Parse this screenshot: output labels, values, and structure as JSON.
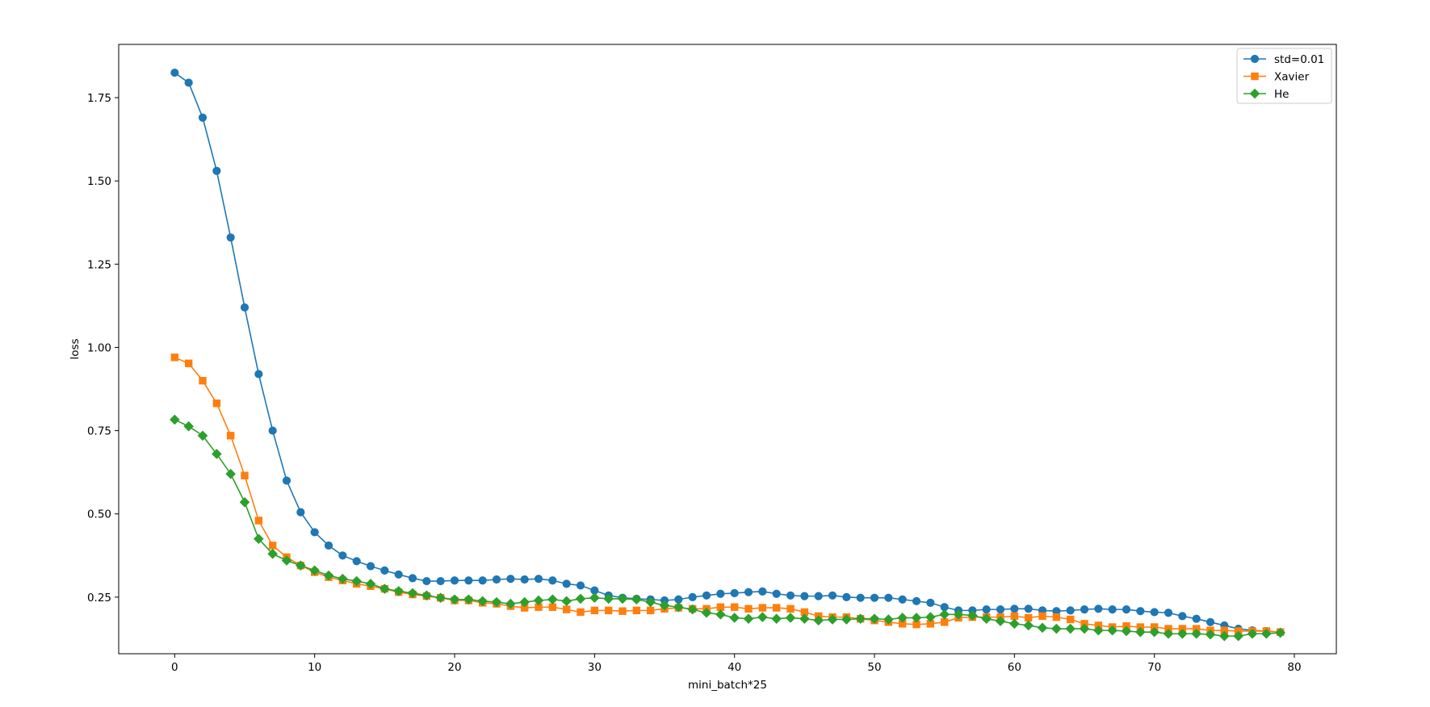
{
  "chart_data": {
    "type": "line",
    "title": "",
    "xlabel": "mini_batch*25",
    "ylabel": "loss",
    "xlim": [
      -4,
      83
    ],
    "ylim": [
      0.08,
      1.91
    ],
    "xticks": [
      0,
      10,
      20,
      30,
      40,
      50,
      60,
      70,
      80
    ],
    "yticks": [
      0.25,
      0.5,
      0.75,
      1.0,
      1.25,
      1.5,
      1.75
    ],
    "ytick_labels": [
      "0.25",
      "0.50",
      "0.75",
      "1.00",
      "1.25",
      "1.50",
      "1.75"
    ],
    "xtick_labels": [
      "0",
      "10",
      "20",
      "30",
      "40",
      "50",
      "60",
      "70",
      "80"
    ],
    "grid": false,
    "legend_position": "top-right",
    "x": [
      0,
      1,
      2,
      3,
      4,
      5,
      6,
      7,
      8,
      9,
      10,
      11,
      12,
      13,
      14,
      15,
      16,
      17,
      18,
      19,
      20,
      21,
      22,
      23,
      24,
      25,
      26,
      27,
      28,
      29,
      30,
      31,
      32,
      33,
      34,
      35,
      36,
      37,
      38,
      39,
      40,
      41,
      42,
      43,
      44,
      45,
      46,
      47,
      48,
      49,
      50,
      51,
      52,
      53,
      54,
      55,
      56,
      57,
      58,
      59,
      60,
      61,
      62,
      63,
      64,
      65,
      66,
      67,
      68,
      69,
      70,
      71,
      72,
      73,
      74,
      75,
      76,
      77,
      78,
      79
    ],
    "series": [
      {
        "name": "std=0.01",
        "color": "#1f77b4",
        "marker": "circle",
        "values": [
          1.825,
          1.795,
          1.69,
          1.53,
          1.33,
          1.12,
          0.92,
          0.75,
          0.6,
          0.505,
          0.445,
          0.405,
          0.375,
          0.358,
          0.343,
          0.33,
          0.318,
          0.307,
          0.298,
          0.298,
          0.3,
          0.3,
          0.3,
          0.303,
          0.305,
          0.303,
          0.305,
          0.3,
          0.29,
          0.285,
          0.27,
          0.255,
          0.248,
          0.245,
          0.243,
          0.24,
          0.243,
          0.25,
          0.255,
          0.26,
          0.262,
          0.265,
          0.267,
          0.26,
          0.255,
          0.253,
          0.253,
          0.255,
          0.25,
          0.248,
          0.248,
          0.248,
          0.243,
          0.238,
          0.233,
          0.22,
          0.21,
          0.21,
          0.213,
          0.213,
          0.215,
          0.215,
          0.21,
          0.208,
          0.21,
          0.213,
          0.215,
          0.213,
          0.213,
          0.208,
          0.205,
          0.203,
          0.193,
          0.185,
          0.175,
          0.165,
          0.155,
          0.15,
          0.148,
          0.145
        ]
      },
      {
        "name": "Xavier",
        "color": "#ff7f0e",
        "marker": "square",
        "values": [
          0.97,
          0.952,
          0.9,
          0.832,
          0.735,
          0.615,
          0.48,
          0.405,
          0.37,
          0.345,
          0.325,
          0.31,
          0.3,
          0.29,
          0.283,
          0.275,
          0.265,
          0.258,
          0.253,
          0.248,
          0.24,
          0.24,
          0.233,
          0.23,
          0.223,
          0.218,
          0.22,
          0.22,
          0.213,
          0.205,
          0.21,
          0.21,
          0.208,
          0.21,
          0.21,
          0.215,
          0.218,
          0.215,
          0.215,
          0.22,
          0.22,
          0.215,
          0.218,
          0.218,
          0.215,
          0.205,
          0.193,
          0.19,
          0.19,
          0.185,
          0.18,
          0.175,
          0.17,
          0.168,
          0.17,
          0.175,
          0.188,
          0.19,
          0.19,
          0.19,
          0.193,
          0.188,
          0.193,
          0.19,
          0.183,
          0.17,
          0.165,
          0.16,
          0.163,
          0.16,
          0.16,
          0.155,
          0.155,
          0.155,
          0.15,
          0.15,
          0.148,
          0.148,
          0.148,
          0.145
        ]
      },
      {
        "name": "He",
        "color": "#2ca02c",
        "marker": "diamond",
        "values": [
          0.783,
          0.763,
          0.735,
          0.68,
          0.62,
          0.535,
          0.425,
          0.38,
          0.36,
          0.345,
          0.33,
          0.315,
          0.305,
          0.298,
          0.29,
          0.275,
          0.268,
          0.262,
          0.255,
          0.248,
          0.243,
          0.243,
          0.238,
          0.235,
          0.23,
          0.235,
          0.24,
          0.243,
          0.238,
          0.245,
          0.248,
          0.245,
          0.245,
          0.243,
          0.235,
          0.225,
          0.22,
          0.213,
          0.203,
          0.198,
          0.188,
          0.185,
          0.19,
          0.185,
          0.188,
          0.185,
          0.18,
          0.183,
          0.183,
          0.185,
          0.185,
          0.183,
          0.188,
          0.188,
          0.19,
          0.198,
          0.198,
          0.195,
          0.185,
          0.178,
          0.17,
          0.165,
          0.158,
          0.155,
          0.155,
          0.155,
          0.15,
          0.15,
          0.148,
          0.145,
          0.145,
          0.14,
          0.14,
          0.14,
          0.138,
          0.133,
          0.133,
          0.14,
          0.14,
          0.143
        ]
      }
    ]
  }
}
